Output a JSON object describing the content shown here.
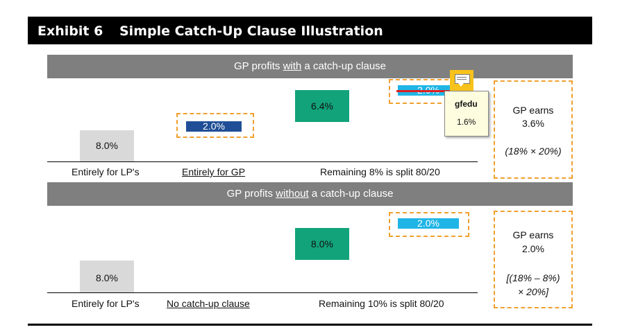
{
  "exhibit": {
    "label": "Exhibit 6",
    "title": "Simple Catch-Up Clause Illustration"
  },
  "chart_data": [
    {
      "type": "bar",
      "panel": "with catch-up",
      "title_parts": [
        "GP profits ",
        "with",
        " a catch-up clause"
      ],
      "categories": [
        "Entirely for LP's",
        "Entirely for GP",
        "Remaining 8% is split 80/20"
      ],
      "bars": [
        {
          "label": "8.0%",
          "value": 8.0,
          "category": "Entirely for LP's",
          "color": "#d9d9d9"
        },
        {
          "label": "2.0%",
          "value": 2.0,
          "category": "Entirely for GP",
          "color": "#1f4e96"
        },
        {
          "label": "6.4%",
          "value": 6.4,
          "category": "Remaining 8% is split 80/20",
          "color": "#12a37a"
        },
        {
          "label": "2.0%",
          "value": 2.0,
          "category": "Remaining 8% is split 80/20",
          "color": "#1fb5e6",
          "struck": true
        }
      ],
      "note": {
        "title": "GP earns",
        "value": "3.6%",
        "formula": "(18% × 20%)"
      }
    },
    {
      "type": "bar",
      "panel": "without catch-up",
      "title_parts": [
        "GP profits ",
        "without",
        " a catch-up clause"
      ],
      "categories": [
        "Entirely for LP's",
        "No catch-up clause",
        "Remaining 10% is split 80/20"
      ],
      "bars": [
        {
          "label": "8.0%",
          "value": 8.0,
          "category": "Entirely for LP's",
          "color": "#d9d9d9"
        },
        {
          "label": "8.0%",
          "value": 8.0,
          "category": "Remaining 10% is split 80/20",
          "color": "#12a37a"
        },
        {
          "label": "2.0%",
          "value": 2.0,
          "category": "Remaining 10% is split 80/20",
          "color": "#1fb5e6"
        }
      ],
      "note": {
        "title": "GP earns",
        "value": "2.0%",
        "formula_line1": "[(18% – 8%)",
        "formula_line2": "× 20%]"
      }
    }
  ],
  "comment": {
    "icon": "comment-icon",
    "author": "gfedu",
    "text": "1.6%"
  },
  "colors": {
    "accent_dash": "#f0a030",
    "header_gray": "#7f7f7f",
    "strike": "#e02020"
  }
}
